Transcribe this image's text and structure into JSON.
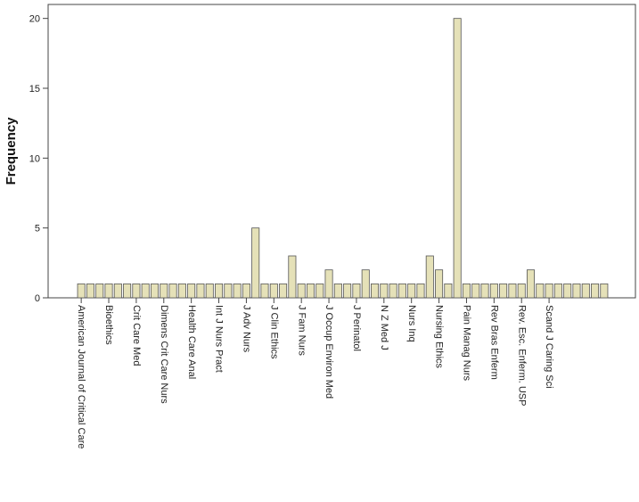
{
  "chart_data": {
    "type": "bar",
    "title": "",
    "xlabel": "",
    "ylabel": "Frequency",
    "ylim": [
      0,
      21
    ],
    "yticks": [
      0,
      5,
      10,
      15,
      20
    ],
    "grid": false,
    "bar_color": "#e5e1b8",
    "bar_stroke": "#555555",
    "values": [
      1,
      1,
      1,
      1,
      1,
      1,
      1,
      1,
      1,
      1,
      1,
      1,
      1,
      1,
      1,
      1,
      1,
      1,
      1,
      5,
      1,
      1,
      1,
      3,
      1,
      1,
      1,
      2,
      1,
      1,
      1,
      2,
      1,
      1,
      1,
      1,
      1,
      1,
      3,
      2,
      1,
      20,
      1,
      1,
      1,
      1,
      1,
      1,
      1,
      2,
      1,
      1,
      1,
      1,
      1,
      1,
      1,
      1
    ],
    "tick_labels": [
      {
        "index": 0,
        "text": "American Journal of Critical Care"
      },
      {
        "index": 3,
        "text": "Bioethics"
      },
      {
        "index": 6,
        "text": "Crit Care Med"
      },
      {
        "index": 9,
        "text": "Dimens Crit Care Nurs"
      },
      {
        "index": 12,
        "text": "Health Care Anal"
      },
      {
        "index": 15,
        "text": "Int J Nurs Pract"
      },
      {
        "index": 18,
        "text": "J Adv Nurs"
      },
      {
        "index": 21,
        "text": "J Clin Ethics"
      },
      {
        "index": 24,
        "text": "J Fam Nurs"
      },
      {
        "index": 27,
        "text": "J Occup Environ Med"
      },
      {
        "index": 30,
        "text": "J Perinatol"
      },
      {
        "index": 33,
        "text": "N Z Med J"
      },
      {
        "index": 36,
        "text": "Nurs Inq"
      },
      {
        "index": 39,
        "text": "Nursing Ethics"
      },
      {
        "index": 42,
        "text": "Pain Manag Nurs"
      },
      {
        "index": 45,
        "text": "Rev Bras Enferm"
      },
      {
        "index": 48,
        "text": "Rev. Esc. Enferm. USP"
      },
      {
        "index": 51,
        "text": "Scand J Caring Sci"
      }
    ]
  }
}
